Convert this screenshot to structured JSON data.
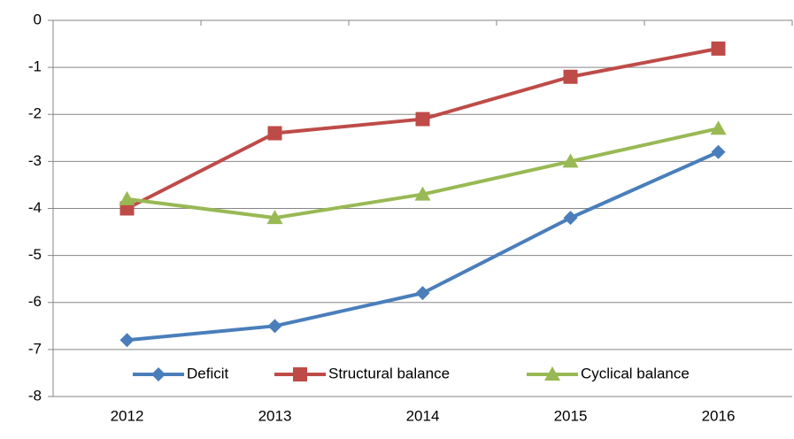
{
  "chart_data": {
    "type": "line",
    "categories": [
      "2012",
      "2013",
      "2014",
      "2015",
      "2016"
    ],
    "series": [
      {
        "name": "Deficit",
        "color": "#4a7ebb",
        "marker": "diamond",
        "values": [
          -6.8,
          -6.5,
          -5.8,
          -4.2,
          -2.8
        ]
      },
      {
        "name": "Structural balance",
        "color": "#be4b48",
        "marker": "square",
        "values": [
          -4.0,
          -2.4,
          -2.1,
          -1.2,
          -0.6
        ]
      },
      {
        "name": "Cyclical balance",
        "color": "#98b954",
        "marker": "triangle",
        "values": [
          -3.8,
          -4.2,
          -3.7,
          -3.0,
          -2.3
        ]
      }
    ],
    "ylim": [
      -8,
      0
    ],
    "yticks": [
      0,
      -1,
      -2,
      -3,
      -4,
      -5,
      -6,
      -7,
      -8
    ],
    "grid": true,
    "legend": "bottom"
  }
}
